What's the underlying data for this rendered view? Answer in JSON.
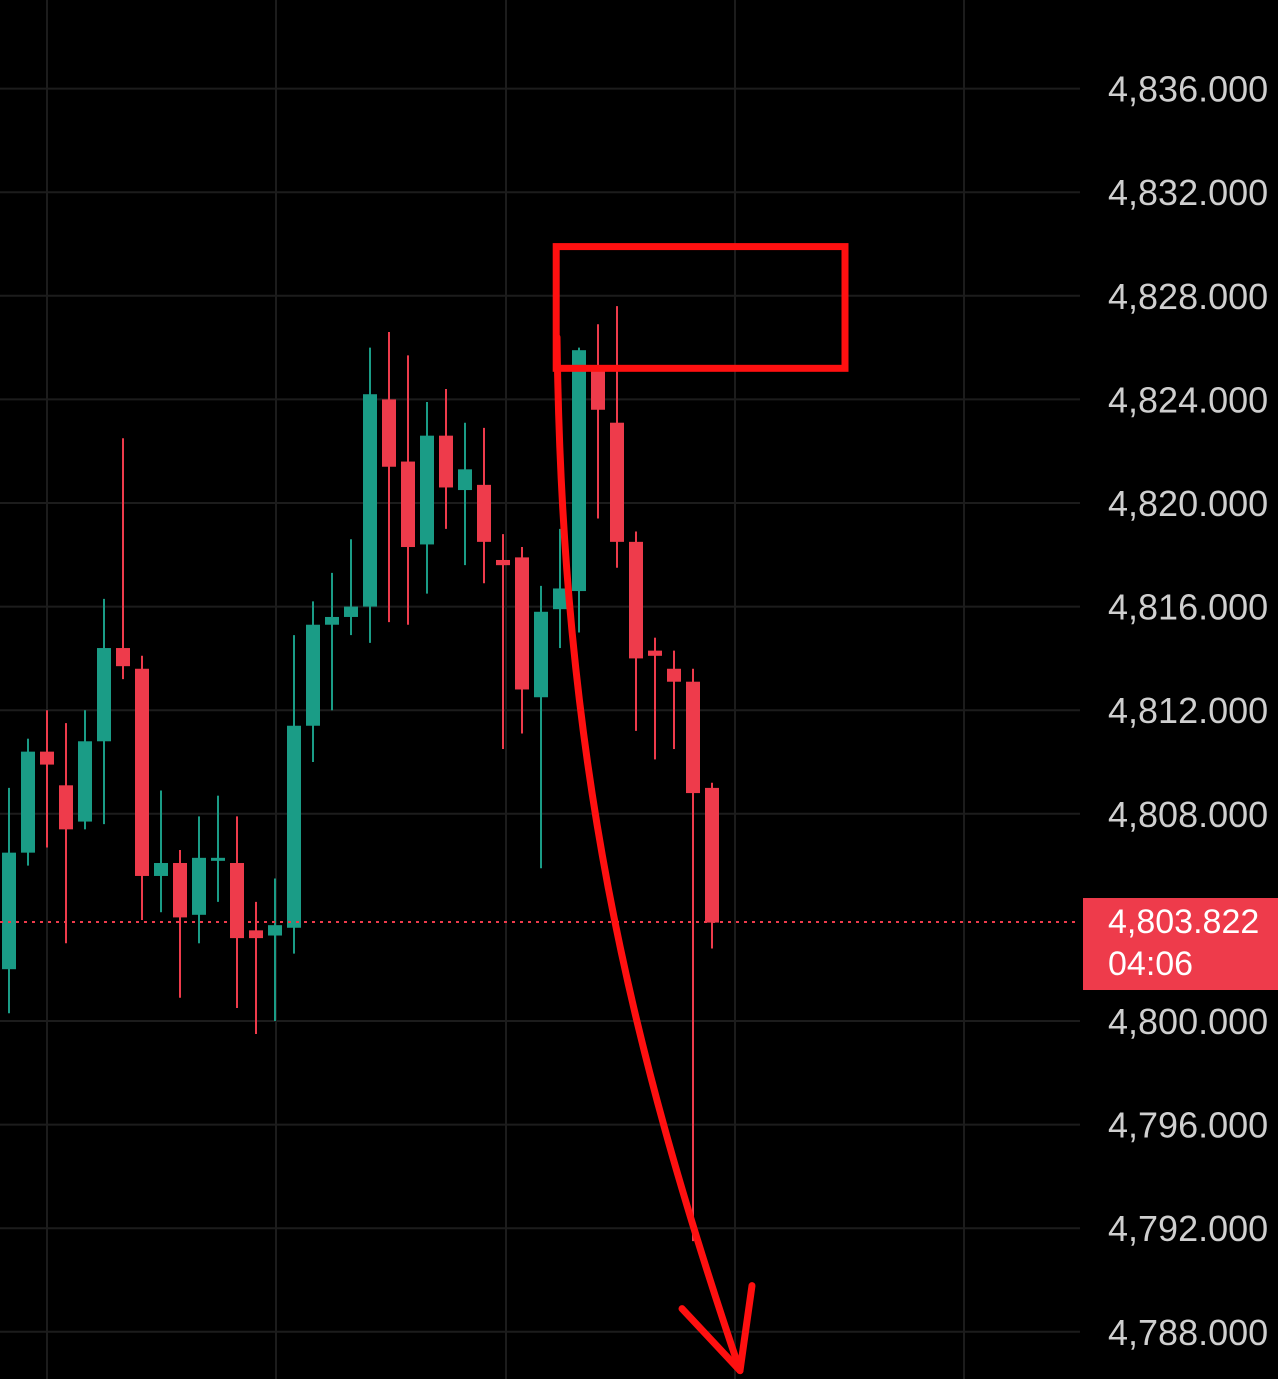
{
  "colors": {
    "background": "#000000",
    "grid": "#1c1c1c",
    "up": "#1a9c86",
    "down": "#ee3b4b",
    "annotation": "#ff1010",
    "price_line": "#ee3b4b",
    "price_tag_bg": "#ee3b4b",
    "axis_text": "#cfcfcf"
  },
  "chart_data": {
    "type": "candlestick",
    "title": "",
    "xlabel": "",
    "ylabel": "",
    "grid": true,
    "ylim": [
      4786.5,
      4840.0
    ],
    "y_ticks": [
      {
        "value": 4788,
        "label": "4,788.000"
      },
      {
        "value": 4792,
        "label": "4,792.000"
      },
      {
        "value": 4796,
        "label": "4,796.000"
      },
      {
        "value": 4800,
        "label": "4,800.000"
      },
      {
        "value": 4808,
        "label": "4,808.000"
      },
      {
        "value": 4812,
        "label": "4,812.000"
      },
      {
        "value": 4816,
        "label": "4,816.000"
      },
      {
        "value": 4820,
        "label": "4,820.000"
      },
      {
        "value": 4824,
        "label": "4,824.000"
      },
      {
        "value": 4828,
        "label": "4,828.000"
      },
      {
        "value": 4832,
        "label": "4,832.000"
      },
      {
        "value": 4836,
        "label": "4,836.000"
      }
    ],
    "current_price": {
      "value": 4803.822,
      "label": "4,803.822",
      "countdown": "04:06"
    },
    "candles": [
      {
        "o": 4802.0,
        "h": 4809.0,
        "l": 4800.3,
        "c": 4806.5
      },
      {
        "o": 4806.5,
        "h": 4810.9,
        "l": 4806.0,
        "c": 4810.4
      },
      {
        "o": 4810.4,
        "h": 4812.0,
        "l": 4806.7,
        "c": 4809.9
      },
      {
        "o": 4809.1,
        "h": 4811.5,
        "l": 4803.0,
        "c": 4807.4
      },
      {
        "o": 4807.7,
        "h": 4812.0,
        "l": 4807.4,
        "c": 4810.8
      },
      {
        "o": 4810.8,
        "h": 4816.3,
        "l": 4807.6,
        "c": 4814.4
      },
      {
        "o": 4814.4,
        "h": 4822.5,
        "l": 4813.2,
        "c": 4813.7
      },
      {
        "o": 4813.6,
        "h": 4814.1,
        "l": 4803.9,
        "c": 4805.6
      },
      {
        "o": 4805.6,
        "h": 4808.9,
        "l": 4804.2,
        "c": 4806.1
      },
      {
        "o": 4806.1,
        "h": 4806.6,
        "l": 4800.9,
        "c": 4804.0
      },
      {
        "o": 4804.1,
        "h": 4807.9,
        "l": 4803.0,
        "c": 4806.3
      },
      {
        "o": 4806.2,
        "h": 4808.7,
        "l": 4804.6,
        "c": 4806.3
      },
      {
        "o": 4806.1,
        "h": 4807.9,
        "l": 4800.5,
        "c": 4803.2
      },
      {
        "o": 4803.5,
        "h": 4804.6,
        "l": 4799.5,
        "c": 4803.2
      },
      {
        "o": 4803.3,
        "h": 4805.5,
        "l": 4800.0,
        "c": 4803.7
      },
      {
        "o": 4803.6,
        "h": 4814.9,
        "l": 4802.6,
        "c": 4811.4
      },
      {
        "o": 4811.4,
        "h": 4816.2,
        "l": 4810.0,
        "c": 4815.3
      },
      {
        "o": 4815.3,
        "h": 4817.3,
        "l": 4812.0,
        "c": 4815.6
      },
      {
        "o": 4815.6,
        "h": 4818.6,
        "l": 4814.9,
        "c": 4816.0
      },
      {
        "o": 4816.0,
        "h": 4826.0,
        "l": 4814.6,
        "c": 4824.2
      },
      {
        "o": 4824.0,
        "h": 4826.6,
        "l": 4815.4,
        "c": 4821.4
      },
      {
        "o": 4821.6,
        "h": 4825.7,
        "l": 4815.3,
        "c": 4818.3
      },
      {
        "o": 4818.4,
        "h": 4823.9,
        "l": 4816.5,
        "c": 4822.6
      },
      {
        "o": 4822.6,
        "h": 4824.4,
        "l": 4819.0,
        "c": 4820.6
      },
      {
        "o": 4820.5,
        "h": 4823.1,
        "l": 4817.6,
        "c": 4821.3
      },
      {
        "o": 4820.7,
        "h": 4822.9,
        "l": 4816.9,
        "c": 4818.5
      },
      {
        "o": 4817.8,
        "h": 4818.8,
        "l": 4810.5,
        "c": 4817.6
      },
      {
        "o": 4817.9,
        "h": 4818.3,
        "l": 4811.1,
        "c": 4812.8
      },
      {
        "o": 4812.5,
        "h": 4816.8,
        "l": 4805.9,
        "c": 4815.8
      },
      {
        "o": 4815.9,
        "h": 4819.0,
        "l": 4814.4,
        "c": 4816.7
      },
      {
        "o": 4816.6,
        "h": 4826.0,
        "l": 4815.0,
        "c": 4825.9
      },
      {
        "o": 4825.3,
        "h": 4826.9,
        "l": 4819.4,
        "c": 4823.6
      },
      {
        "o": 4823.1,
        "h": 4827.6,
        "l": 4817.5,
        "c": 4818.5
      },
      {
        "o": 4818.5,
        "h": 4818.9,
        "l": 4811.2,
        "c": 4814.0
      },
      {
        "o": 4814.3,
        "h": 4814.8,
        "l": 4810.1,
        "c": 4814.1
      },
      {
        "o": 4813.6,
        "h": 4814.3,
        "l": 4810.5,
        "c": 4813.1
      },
      {
        "o": 4813.1,
        "h": 4813.6,
        "l": 4791.5,
        "c": 4808.8
      },
      {
        "o": 4809.0,
        "h": 4809.2,
        "l": 4802.8,
        "c": 4803.8
      }
    ],
    "annotations": [
      {
        "type": "rectangle",
        "color": "#ff1010",
        "y_from": 4825.2,
        "y_to": 4829.9,
        "candle_from": 28.8,
        "candle_to": 44.0
      },
      {
        "type": "arrow",
        "color": "#ff1010",
        "from_price": 4826.4,
        "to_price": 4786.5
      }
    ]
  }
}
